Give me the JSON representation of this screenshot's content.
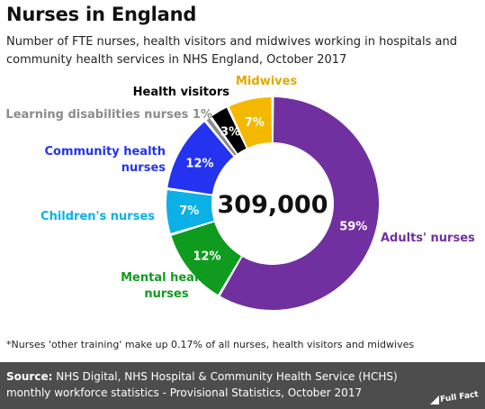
{
  "header": {
    "title": "Nurses in England",
    "subtitle": "Number of FTE nurses, health visitors and midwives working in hospitals and community health services in NHS England, October 2017"
  },
  "chart_data": {
    "type": "pie",
    "donut": true,
    "center_label": "309,000",
    "slices": [
      {
        "name": "Adults' nurses",
        "value": 59,
        "label": "59%",
        "color": "#7030a0"
      },
      {
        "name": "Mental health nurses",
        "value": 12,
        "label": "12%",
        "color": "#0f9b1e"
      },
      {
        "name": "Children's nurses",
        "value": 7,
        "label": "7%",
        "color": "#0bb0e6"
      },
      {
        "name": "Community health nurses",
        "value": 12,
        "label": "12%",
        "color": "#2433f0"
      },
      {
        "name": "Learning disabilities nurses",
        "value": 1,
        "label": "1%",
        "color": "#8c8c8c"
      },
      {
        "name": "Health visitors",
        "value": 3,
        "label": "3%",
        "color": "#000000"
      },
      {
        "name": "Midwives",
        "value": 7,
        "label": "7%",
        "color": "#f5b800"
      }
    ]
  },
  "footnote": "*Nurses 'other training' make up 0.17% of all nurses, health visitors and midwives",
  "source": {
    "label": "Source:",
    "text": "NHS Digital, NHS Hospital & Community Health Service (HCHS) monthly workforce statistics - Provisional Statistics, October 2017"
  },
  "logo": {
    "text": "Full Fact"
  }
}
